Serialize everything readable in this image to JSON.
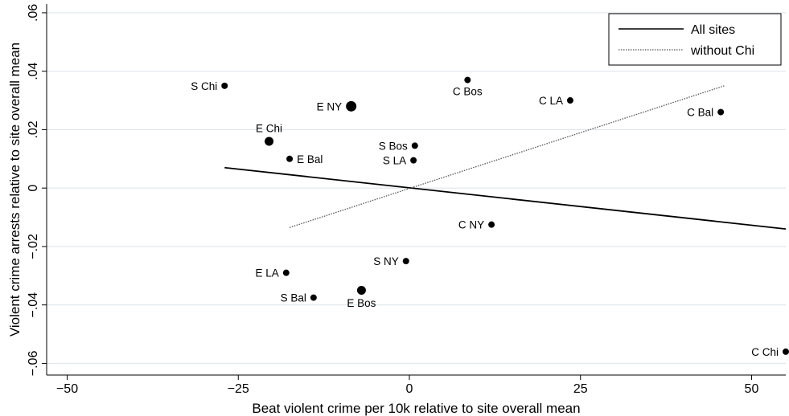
{
  "chart_data": {
    "type": "scatter",
    "xlabel": "Beat violent crime per 10k relative to site overall mean",
    "ylabel": "Violent crime arrests relative to site overall mean",
    "xlim": [
      -53,
      55
    ],
    "ylim": [
      -0.064,
      0.063
    ],
    "x_ticks": [
      -50,
      -25,
      0,
      25,
      50
    ],
    "x_tick_labels": [
      "−50",
      "−25",
      "0",
      "25",
      "50"
    ],
    "y_ticks": [
      -0.06,
      -0.04,
      -0.02,
      0,
      0.02,
      0.04,
      0.06
    ],
    "y_tick_labels": [
      "−.06",
      "−.04",
      "−.02",
      "0",
      ".02",
      ".04",
      ".06"
    ],
    "grid": "horizontal",
    "legend": {
      "position": "top-right",
      "entries": [
        {
          "label": "All sites",
          "style": "solid"
        },
        {
          "label": "without Chi",
          "style": "dotted"
        }
      ]
    },
    "points": [
      {
        "label": "S Chi",
        "x": -27.0,
        "y": 0.035,
        "size": "small",
        "label_side": "left"
      },
      {
        "label": "E Chi",
        "x": -20.5,
        "y": 0.016,
        "size": "medium",
        "label_side": "above"
      },
      {
        "label": "E Bal",
        "x": -17.5,
        "y": 0.01,
        "size": "small",
        "label_side": "right"
      },
      {
        "label": "E NY",
        "x": -8.5,
        "y": 0.028,
        "size": "large",
        "label_side": "left"
      },
      {
        "label": "C Bos",
        "x": 8.5,
        "y": 0.037,
        "size": "small",
        "label_side": "below"
      },
      {
        "label": "S Bos",
        "x": 0.8,
        "y": 0.0145,
        "size": "small",
        "label_side": "left"
      },
      {
        "label": "S LA",
        "x": 0.6,
        "y": 0.0095,
        "size": "small",
        "label_side": "left"
      },
      {
        "label": "C LA",
        "x": 23.5,
        "y": 0.03,
        "size": "small",
        "label_side": "left"
      },
      {
        "label": "C Bal",
        "x": 45.5,
        "y": 0.026,
        "size": "small",
        "label_side": "left"
      },
      {
        "label": "C NY",
        "x": 12.0,
        "y": -0.0125,
        "size": "small",
        "label_side": "left"
      },
      {
        "label": "S NY",
        "x": -0.5,
        "y": -0.025,
        "size": "small",
        "label_side": "left"
      },
      {
        "label": "E LA",
        "x": -18.0,
        "y": -0.029,
        "size": "small",
        "label_side": "left"
      },
      {
        "label": "E Bos",
        "x": -7.0,
        "y": -0.035,
        "size": "medium",
        "label_side": "below"
      },
      {
        "label": "S Bal",
        "x": -14.0,
        "y": -0.0375,
        "size": "small",
        "label_side": "left"
      },
      {
        "label": "C Chi",
        "x": 55.0,
        "y": -0.056,
        "size": "small",
        "label_side": "left"
      }
    ],
    "lines": [
      {
        "name": "All sites",
        "style": "solid",
        "x": [
          -27,
          55
        ],
        "y": [
          0.007,
          -0.014
        ]
      },
      {
        "name": "without Chi",
        "style": "dotted",
        "x": [
          -17.5,
          46
        ],
        "y": [
          -0.0135,
          0.035
        ]
      }
    ]
  }
}
